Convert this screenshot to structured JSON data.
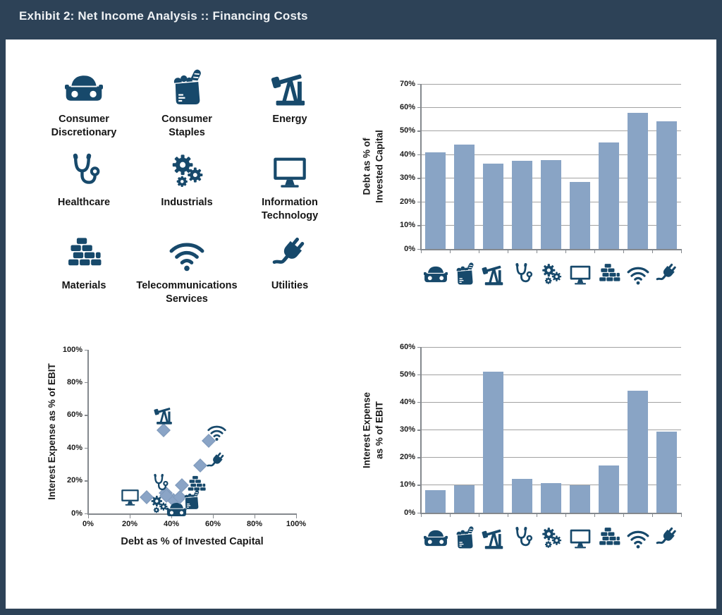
{
  "header": {
    "title": "Exhibit 2: Net Income Analysis :: Financing Costs"
  },
  "colors": {
    "frame_background": "#2d4257",
    "panel_background": "#ffffff",
    "icon_blue": "#17496b",
    "bar_fill": "#89a4c5",
    "marker_fill": "#8aa4c6",
    "gridline": "#a2a2a2",
    "axis": "#85898e",
    "text": "#1a1a1a",
    "header_text": "#eef1f4"
  },
  "sectors": [
    {
      "id": "consumer-discretionary",
      "label": "Consumer Discretionary",
      "icon": "car-icon"
    },
    {
      "id": "consumer-staples",
      "label": "Consumer Staples",
      "icon": "grocery-bag-icon"
    },
    {
      "id": "energy",
      "label": "Energy",
      "icon": "oil-pump-icon"
    },
    {
      "id": "healthcare",
      "label": "Healthcare",
      "icon": "stethoscope-icon"
    },
    {
      "id": "industrials",
      "label": "Industrials",
      "icon": "gears-icon"
    },
    {
      "id": "information-technology",
      "label": "Information Technology",
      "icon": "monitor-icon"
    },
    {
      "id": "materials",
      "label": "Materials",
      "icon": "bricks-icon"
    },
    {
      "id": "telecommunications-services",
      "label": "Telecommunications Services",
      "icon": "wifi-icon"
    },
    {
      "id": "utilities",
      "label": "Utilities",
      "icon": "plug-icon"
    }
  ],
  "chart_data": [
    {
      "id": "debt-bar-chart",
      "type": "bar",
      "ylabel_lines": [
        "Debt as % of",
        "Invested Capital"
      ],
      "categories": [
        "consumer-discretionary",
        "consumer-staples",
        "energy",
        "healthcare",
        "industrials",
        "information-technology",
        "materials",
        "telecommunications-services",
        "utilities"
      ],
      "values": [
        41,
        44.2,
        36.2,
        37.3,
        37.7,
        28.3,
        45.2,
        57.8,
        54
      ],
      "ylim": [
        0,
        70
      ],
      "ytick_step": 10,
      "tick_suffix": "%",
      "grid": true,
      "x_axis_labels": "sector-icons"
    },
    {
      "id": "interest-bar-chart",
      "type": "bar",
      "ylabel_lines": [
        "Interest Expense",
        "as % of EBIT"
      ],
      "categories": [
        "consumer-discretionary",
        "consumer-staples",
        "energy",
        "healthcare",
        "industrials",
        "information-technology",
        "materials",
        "telecommunications-services",
        "utilities"
      ],
      "values": [
        8.2,
        10,
        51,
        12.3,
        10.6,
        10,
        17.2,
        44.2,
        29.3
      ],
      "ylim": [
        0,
        60
      ],
      "ytick_step": 10,
      "tick_suffix": "%",
      "grid": true,
      "x_axis_labels": "sector-icons"
    },
    {
      "id": "debt-vs-interest-scatter",
      "type": "scatter",
      "xlabel": "Debt as % of Invested Capital",
      "ylabel": "Interest Expense as % of EBIT",
      "xlim": [
        0,
        100
      ],
      "ylim": [
        0,
        100
      ],
      "xtick_step": 20,
      "ytick_step": 20,
      "tick_suffix": "%",
      "grid": false,
      "marker": "diamond",
      "points": [
        {
          "sector": "consumer-discretionary",
          "x": 41,
          "y": 8.2,
          "icon_x": 42.5,
          "icon_y": 2.5
        },
        {
          "sector": "consumer-staples",
          "x": 44.2,
          "y": 10,
          "icon_x": 49.5,
          "icon_y": 8
        },
        {
          "sector": "energy",
          "x": 36.2,
          "y": 51,
          "icon_x": 36.5,
          "icon_y": 60
        },
        {
          "sector": "healthcare",
          "x": 37.3,
          "y": 12.3,
          "icon_x": 34.5,
          "icon_y": 18.5
        },
        {
          "sector": "industrials",
          "x": 37.7,
          "y": 10.6,
          "icon_x": 34,
          "icon_y": 5.5
        },
        {
          "sector": "information-technology",
          "x": 28.3,
          "y": 10,
          "icon_x": 20,
          "icon_y": 10
        },
        {
          "sector": "materials",
          "x": 45.2,
          "y": 17.2,
          "icon_x": 52,
          "icon_y": 17.5
        },
        {
          "sector": "telecommunications-services",
          "x": 57.8,
          "y": 44.2,
          "icon_x": 62,
          "icon_y": 50
        },
        {
          "sector": "utilities",
          "x": 54,
          "y": 29.3,
          "icon_x": 61.5,
          "icon_y": 31.5
        }
      ]
    }
  ]
}
